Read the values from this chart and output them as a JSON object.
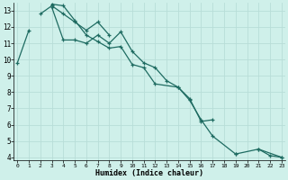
{
  "title": "",
  "xlabel": "Humidex (Indice chaleur)",
  "bg_color": "#cff0ea",
  "grid_color": "#b8ddd8",
  "line_color": "#1e6b61",
  "series": [
    {
      "x": [
        0,
        1,
        2,
        3,
        4,
        5,
        6,
        7,
        8,
        9,
        10,
        11,
        12,
        13,
        14,
        15,
        16,
        17,
        18,
        19,
        20,
        21,
        22,
        23
      ],
      "y": [
        9.8,
        11.8,
        null,
        13.2,
        11.2,
        11.2,
        11.0,
        11.5,
        11.0,
        11.7,
        10.5,
        9.8,
        9.5,
        8.7,
        8.3,
        7.6,
        6.2,
        6.3,
        null,
        4.2,
        null,
        4.5,
        4.1,
        4.0
      ]
    },
    {
      "x": [
        2,
        3,
        4,
        5,
        6,
        7,
        8
      ],
      "y": [
        12.8,
        13.3,
        12.8,
        12.3,
        11.8,
        12.3,
        11.5
      ]
    },
    {
      "x": [
        3,
        4,
        5,
        6,
        7,
        8,
        9,
        10,
        11,
        12,
        14,
        15,
        16,
        17,
        19,
        21,
        23
      ],
      "y": [
        13.4,
        13.3,
        12.4,
        11.5,
        11.1,
        10.7,
        10.8,
        9.7,
        9.5,
        8.5,
        8.3,
        7.5,
        6.3,
        5.3,
        4.2,
        4.5,
        4.0
      ]
    }
  ],
  "xlim": [
    -0.3,
    23.3
  ],
  "ylim": [
    3.8,
    13.5
  ],
  "yticks": [
    4,
    5,
    6,
    7,
    8,
    9,
    10,
    11,
    12,
    13
  ],
  "xticks": [
    0,
    1,
    2,
    3,
    4,
    5,
    6,
    7,
    8,
    9,
    10,
    11,
    12,
    13,
    14,
    15,
    16,
    17,
    18,
    19,
    20,
    21,
    22,
    23
  ],
  "figsize": [
    3.2,
    2.0
  ],
  "dpi": 100
}
